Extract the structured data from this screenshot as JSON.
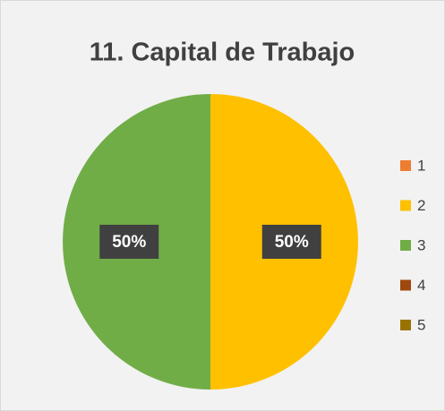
{
  "chart_data": {
    "type": "pie",
    "title": "11. Capital de Trabajo",
    "categories": [
      "1",
      "2",
      "3",
      "4",
      "5"
    ],
    "values": [
      0,
      50,
      50,
      0,
      0
    ],
    "value_labels": [
      null,
      "50%",
      "50%",
      null,
      null
    ],
    "colors": [
      "#ed7d31",
      "#ffc000",
      "#70ad47",
      "#9e480e",
      "#997300"
    ],
    "legend": "right"
  }
}
